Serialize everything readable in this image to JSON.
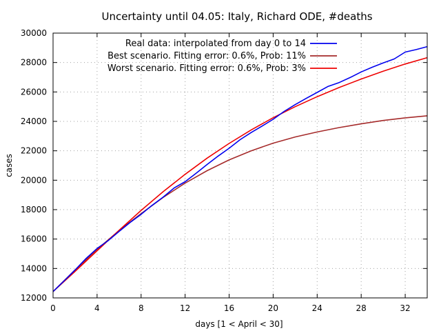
{
  "chart_data": {
    "type": "line",
    "title": "Uncertainty until 04.05: Italy, Richard ODE, #deaths",
    "xlabel": "days [1 < April < 30]",
    "ylabel": "cases",
    "xlim": [
      0,
      34
    ],
    "ylim": [
      12000,
      30000
    ],
    "xticks": [
      0,
      4,
      8,
      12,
      16,
      20,
      24,
      28,
      32
    ],
    "yticks": [
      12000,
      14000,
      16000,
      18000,
      20000,
      22000,
      24000,
      26000,
      28000,
      30000
    ],
    "grid": true,
    "legend_position": "top-right",
    "series": [
      {
        "name": "Real data: interpolated from day 0 to 14",
        "color": "#0000ee",
        "x": [
          0,
          1,
          2,
          3,
          4,
          5,
          6,
          7,
          8,
          9,
          10,
          11,
          12,
          13,
          14,
          15,
          16,
          17,
          18,
          19,
          20,
          21,
          22,
          23,
          24,
          25,
          26,
          27,
          28,
          29,
          30,
          31,
          32,
          33,
          34
        ],
        "y": [
          12430,
          13160,
          13900,
          14680,
          15360,
          15890,
          16520,
          17130,
          17680,
          18290,
          18850,
          19470,
          19900,
          20470,
          21070,
          21640,
          22170,
          22760,
          23240,
          23680,
          24140,
          24680,
          25140,
          25560,
          25970,
          26380,
          26640,
          26980,
          27360,
          27680,
          27970,
          28240,
          28710,
          28880,
          29080
        ]
      },
      {
        "name": "Best scenario. Fitting error: 0.6%, Prob: 11%",
        "color": "#a52a2a",
        "x": [
          0,
          2,
          4,
          6,
          8,
          10,
          12,
          14,
          16,
          18,
          20,
          22,
          24,
          26,
          28,
          30,
          32,
          34
        ],
        "y": [
          12430,
          13900,
          15300,
          16580,
          17730,
          18830,
          19800,
          20650,
          21380,
          22000,
          22520,
          22940,
          23280,
          23580,
          23830,
          24060,
          24240,
          24380
        ]
      },
      {
        "name": "Worst scenario. Fitting error: 0.6%, Prob: 3%",
        "color": "#ee0000",
        "x": [
          0,
          2,
          4,
          6,
          8,
          10,
          12,
          14,
          16,
          18,
          20,
          22,
          24,
          26,
          28,
          30,
          32,
          34
        ],
        "y": [
          12430,
          13800,
          15200,
          16600,
          17950,
          19220,
          20400,
          21500,
          22500,
          23420,
          24250,
          25000,
          25680,
          26300,
          26880,
          27410,
          27900,
          28330
        ]
      }
    ]
  }
}
